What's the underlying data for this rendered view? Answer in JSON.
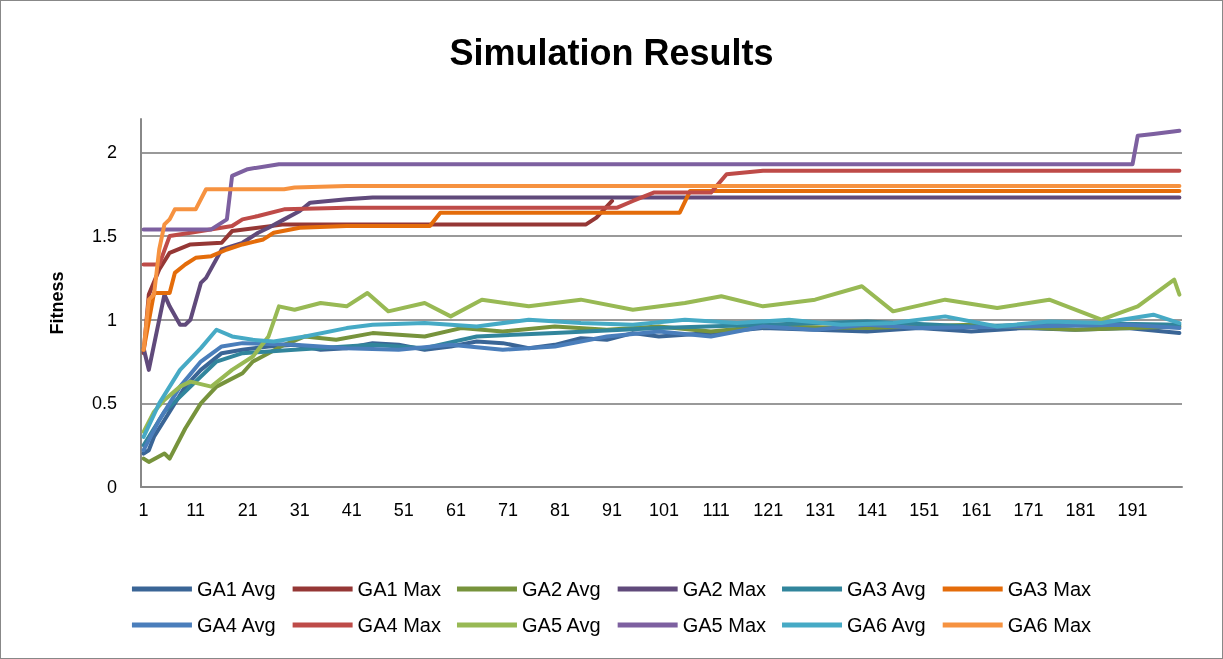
{
  "chart_data": {
    "type": "line",
    "title": "Simulation Results",
    "ylabel": "Fitness",
    "xlim": [
      0.5,
      200.5
    ],
    "xticks": [
      1,
      11,
      21,
      31,
      41,
      51,
      61,
      71,
      81,
      91,
      101,
      111,
      121,
      131,
      141,
      151,
      161,
      171,
      181,
      191
    ],
    "ylim": [
      0,
      2.2
    ],
    "yticks": [
      0,
      0.5,
      1,
      1.5,
      2
    ],
    "grid": "y",
    "legend": "bottom",
    "marker": "none",
    "line_style": "solid",
    "series": [
      {
        "name": "GA1 Avg",
        "color": "#3a6596",
        "x": [
          1,
          2,
          3,
          6,
          9,
          12,
          16,
          20,
          25,
          30,
          35,
          40,
          45,
          50,
          55,
          60,
          65,
          70,
          75,
          80,
          85,
          90,
          95,
          100,
          110,
          120,
          130,
          140,
          150,
          160,
          170,
          180,
          190,
          200
        ],
        "values": [
          0.2,
          0.22,
          0.3,
          0.45,
          0.6,
          0.7,
          0.8,
          0.82,
          0.84,
          0.85,
          0.82,
          0.83,
          0.86,
          0.85,
          0.82,
          0.84,
          0.87,
          0.86,
          0.83,
          0.85,
          0.89,
          0.88,
          0.92,
          0.9,
          0.92,
          0.95,
          0.94,
          0.93,
          0.95,
          0.93,
          0.95,
          0.94,
          0.95,
          0.92
        ]
      },
      {
        "name": "GA1 Max",
        "color": "#953735",
        "x": [
          1,
          2,
          4,
          6,
          10,
          16,
          18,
          28,
          86,
          88,
          91
        ],
        "values": [
          0.8,
          1.15,
          1.3,
          1.4,
          1.45,
          1.46,
          1.53,
          1.57,
          1.57,
          1.61,
          1.71
        ]
      },
      {
        "name": "GA2 Avg",
        "color": "#77933c",
        "x": [
          1,
          2,
          5,
          6,
          9,
          10,
          12,
          15,
          20,
          22,
          25,
          28,
          32,
          38,
          45,
          55,
          62,
          70,
          80,
          90,
          100,
          110,
          120,
          140,
          160,
          180,
          200
        ],
        "values": [
          0.17,
          0.15,
          0.2,
          0.17,
          0.35,
          0.4,
          0.5,
          0.6,
          0.68,
          0.75,
          0.8,
          0.85,
          0.9,
          0.88,
          0.92,
          0.9,
          0.95,
          0.93,
          0.96,
          0.94,
          0.96,
          0.93,
          0.96,
          0.95,
          0.97,
          0.94,
          0.96
        ]
      },
      {
        "name": "GA2 Max",
        "color": "#604a7b",
        "x": [
          1,
          2,
          5,
          6,
          8,
          9,
          10,
          12,
          13,
          16,
          20,
          23,
          25,
          28,
          31,
          33,
          40,
          45,
          200
        ],
        "values": [
          0.83,
          0.7,
          1.15,
          1.08,
          0.97,
          0.97,
          1.0,
          1.22,
          1.25,
          1.42,
          1.46,
          1.52,
          1.55,
          1.6,
          1.65,
          1.7,
          1.72,
          1.73,
          1.73
        ]
      },
      {
        "name": "GA3 Avg",
        "color": "#31859c",
        "x": [
          1,
          5,
          10,
          15,
          20,
          30,
          45,
          55,
          65,
          80,
          100,
          120,
          140,
          160,
          180,
          200
        ],
        "values": [
          0.25,
          0.45,
          0.6,
          0.75,
          0.8,
          0.82,
          0.85,
          0.83,
          0.9,
          0.92,
          0.95,
          0.97,
          0.99,
          0.96,
          0.98,
          0.97
        ]
      },
      {
        "name": "GA3 Max",
        "color": "#e46c0a",
        "x": [
          1,
          3,
          6,
          7,
          9,
          11,
          14,
          17,
          20,
          24,
          26,
          31,
          40,
          56,
          58,
          104,
          106,
          200
        ],
        "values": [
          0.82,
          1.16,
          1.16,
          1.28,
          1.33,
          1.37,
          1.38,
          1.42,
          1.45,
          1.48,
          1.52,
          1.55,
          1.56,
          1.56,
          1.64,
          1.64,
          1.77,
          1.77
        ]
      },
      {
        "name": "GA4 Avg",
        "color": "#4a7ebb",
        "x": [
          1,
          4,
          8,
          12,
          16,
          20,
          30,
          40,
          50,
          60,
          70,
          80,
          90,
          100,
          110,
          120,
          130,
          140,
          150,
          170,
          190,
          200
        ],
        "values": [
          0.22,
          0.4,
          0.6,
          0.75,
          0.84,
          0.86,
          0.85,
          0.83,
          0.82,
          0.85,
          0.82,
          0.84,
          0.9,
          0.93,
          0.9,
          0.96,
          0.94,
          0.97,
          0.95,
          0.96,
          0.97,
          0.95
        ]
      },
      {
        "name": "GA4 Max",
        "color": "#be4b48",
        "x": [
          1,
          4,
          6,
          10,
          18,
          20,
          23,
          28,
          40,
          92,
          95,
          99,
          110,
          113,
          120,
          200
        ],
        "values": [
          1.33,
          1.33,
          1.5,
          1.52,
          1.56,
          1.6,
          1.62,
          1.66,
          1.67,
          1.67,
          1.71,
          1.76,
          1.76,
          1.87,
          1.89,
          1.89
        ]
      },
      {
        "name": "GA5 Avg",
        "color": "#98b954",
        "x": [
          1,
          3,
          5,
          8,
          10,
          14,
          18,
          22,
          25,
          27,
          30,
          35,
          40,
          44,
          48,
          55,
          60,
          66,
          75,
          85,
          95,
          105,
          112,
          120,
          130,
          139,
          145,
          155,
          165,
          175,
          185,
          192,
          199,
          200
        ],
        "values": [
          0.33,
          0.45,
          0.52,
          0.6,
          0.63,
          0.6,
          0.7,
          0.78,
          0.9,
          1.08,
          1.06,
          1.1,
          1.08,
          1.16,
          1.05,
          1.1,
          1.02,
          1.12,
          1.08,
          1.12,
          1.06,
          1.1,
          1.14,
          1.08,
          1.12,
          1.2,
          1.05,
          1.12,
          1.07,
          1.12,
          1.0,
          1.08,
          1.24,
          1.15
        ]
      },
      {
        "name": "GA5 Max",
        "color": "#7d60a0",
        "x": [
          1,
          14,
          17,
          18,
          21,
          27,
          191,
          192,
          195,
          200
        ],
        "values": [
          1.54,
          1.54,
          1.6,
          1.86,
          1.9,
          1.93,
          1.93,
          2.1,
          2.11,
          2.13
        ]
      },
      {
        "name": "GA6 Avg",
        "color": "#46aac5",
        "x": [
          1,
          4,
          8,
          12,
          15,
          18,
          22,
          26,
          32,
          40,
          45,
          55,
          65,
          75,
          85,
          95,
          105,
          115,
          125,
          135,
          145,
          155,
          165,
          175,
          185,
          195,
          200
        ],
        "values": [
          0.3,
          0.5,
          0.7,
          0.83,
          0.94,
          0.9,
          0.88,
          0.87,
          0.9,
          0.95,
          0.97,
          0.98,
          0.96,
          1.0,
          0.98,
          0.97,
          1.0,
          0.98,
          1.0,
          0.97,
          0.98,
          1.02,
          0.96,
          0.99,
          0.98,
          1.03,
          0.98
        ]
      },
      {
        "name": "GA6 Max",
        "color": "#f69240",
        "x": [
          1,
          2,
          3,
          4,
          5,
          6,
          7,
          11,
          13,
          28,
          30,
          40,
          200
        ],
        "values": [
          0.82,
          1.12,
          1.15,
          1.42,
          1.57,
          1.6,
          1.66,
          1.66,
          1.78,
          1.78,
          1.79,
          1.8,
          1.8
        ]
      }
    ]
  }
}
